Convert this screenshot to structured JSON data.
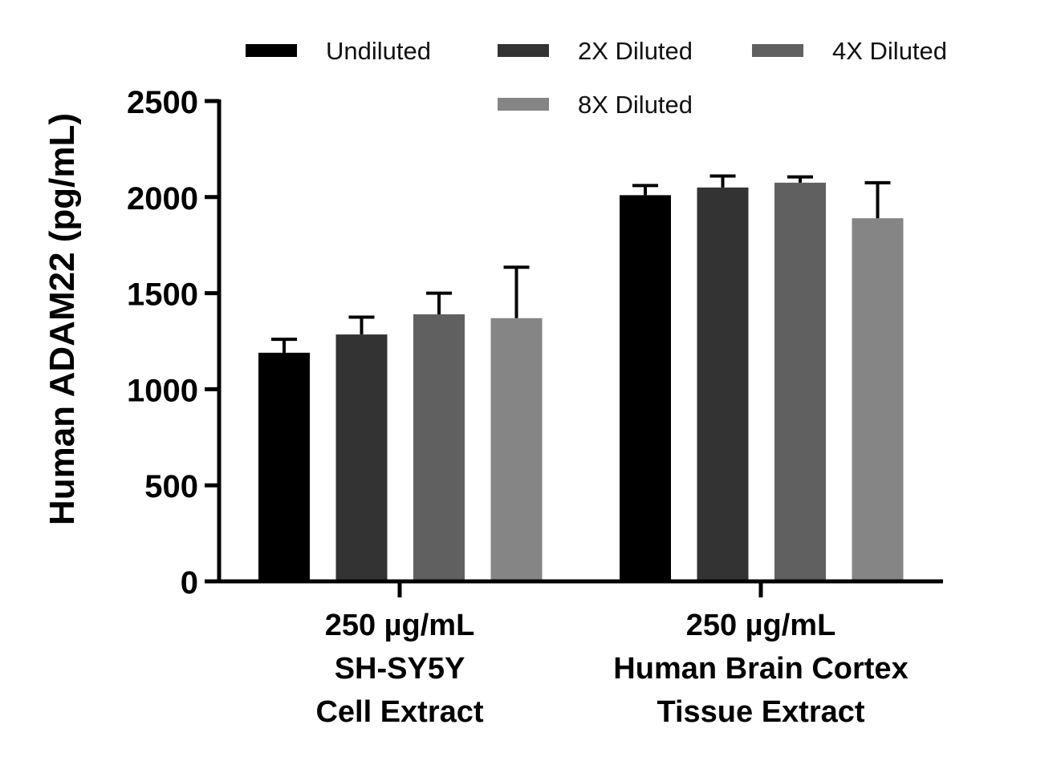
{
  "chart_data": {
    "type": "bar",
    "title": "",
    "xlabel": "",
    "ylabel": "Human ADAM22 (pg/mL)",
    "ylim": [
      0,
      2500
    ],
    "yticks": [
      "0",
      "500",
      "1000",
      "1500",
      "2000",
      "2500"
    ],
    "grid": false,
    "legend_position": "top",
    "categories": [
      [
        "250 µg/mL",
        "SH-SY5Y",
        "Cell Extract"
      ],
      [
        "250 µg/mL",
        "Human Brain Cortex",
        "Tissue Extract"
      ]
    ],
    "series": [
      {
        "name": "Undiluted",
        "color": "#000000",
        "values": [
          1190,
          2010
        ],
        "errors": [
          70,
          50
        ]
      },
      {
        "name": "2X Diluted",
        "color": "#333333",
        "values": [
          1285,
          2050
        ],
        "errors": [
          90,
          60
        ]
      },
      {
        "name": "4X Diluted",
        "color": "#606060",
        "values": [
          1390,
          2075
        ],
        "errors": [
          110,
          30
        ]
      },
      {
        "name": "8X Diluted",
        "color": "#858585",
        "values": [
          1370,
          1890
        ],
        "errors": [
          265,
          185
        ]
      }
    ]
  }
}
